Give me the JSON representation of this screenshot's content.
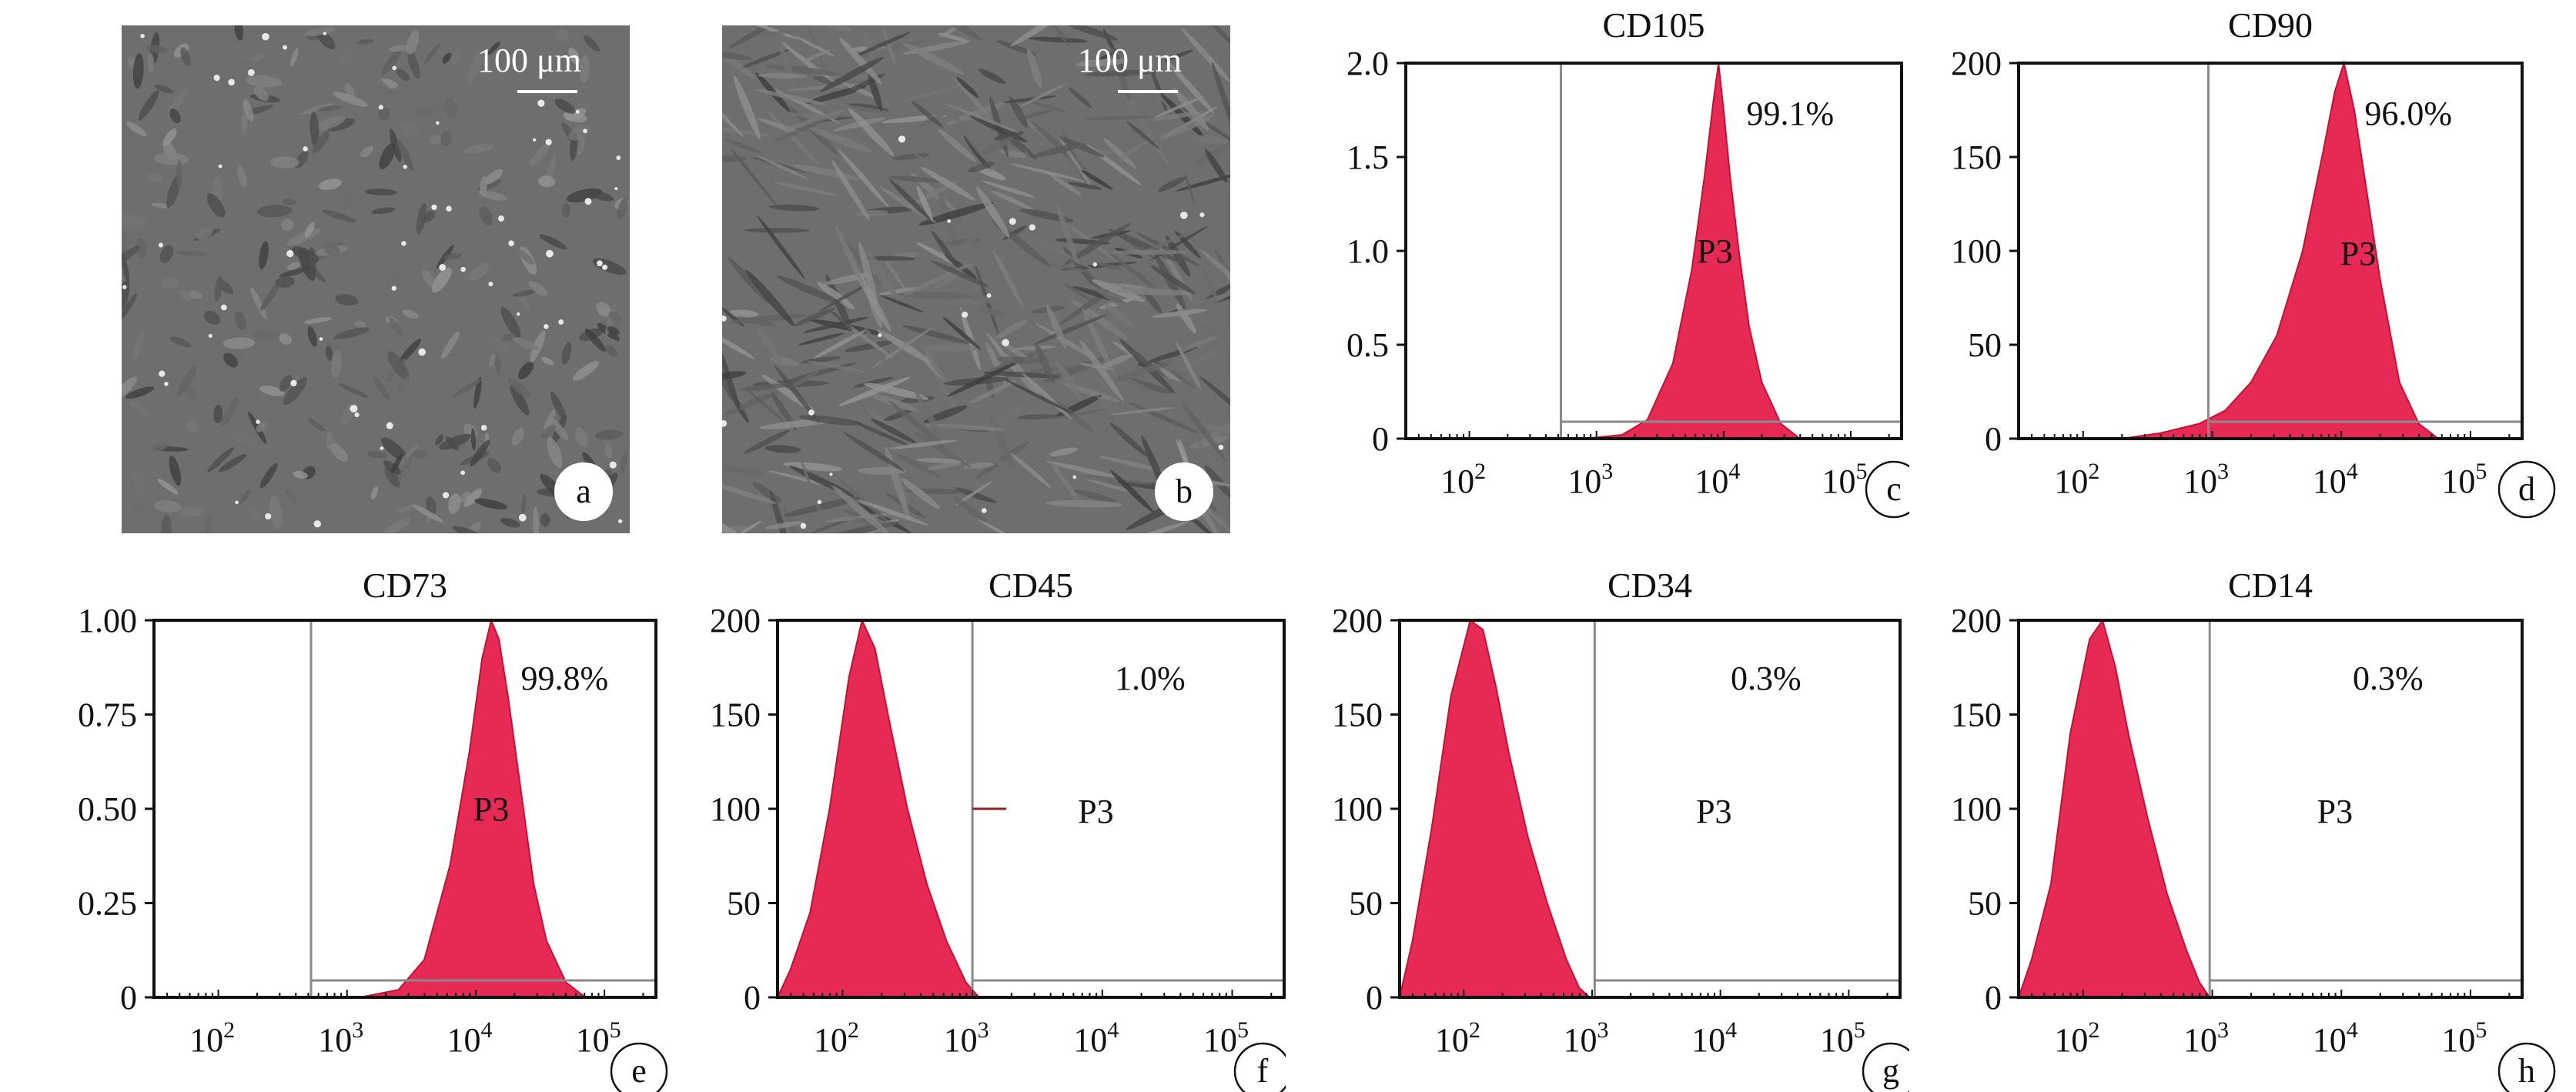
{
  "micrographs": [
    {
      "id": "a",
      "label": "a",
      "scale_text": "100 μm"
    },
    {
      "id": "b",
      "label": "b",
      "scale_text": "100 μm"
    }
  ],
  "chart_data": [
    {
      "id": "c",
      "type": "area",
      "title": "CD105",
      "panel_label": "c",
      "percent_text": "99.1%",
      "gate_label": "P3",
      "yticks": [
        "2.0",
        "1.5",
        "1.0",
        "0.5",
        "0"
      ],
      "ylim": [
        0,
        2.0
      ],
      "xticks": [
        {
          "base": "10",
          "exp": "2"
        },
        {
          "base": "10",
          "exp": "3"
        },
        {
          "base": "10",
          "exp": "4"
        },
        {
          "base": "10",
          "exp": "5"
        }
      ],
      "xscale": "log",
      "xlim_log10": [
        1.5,
        5.4
      ],
      "gate_log10": 2.72,
      "histogram": {
        "x_log10": [
          2.9,
          3.2,
          3.4,
          3.6,
          3.75,
          3.85,
          3.92,
          3.96,
          4.0,
          4.05,
          4.12,
          4.2,
          4.3,
          4.45,
          4.6
        ],
        "y": [
          0,
          0.02,
          0.1,
          0.4,
          0.9,
          1.4,
          1.8,
          2.0,
          1.75,
          1.4,
          1.0,
          0.6,
          0.3,
          0.08,
          0
        ]
      }
    },
    {
      "id": "d",
      "type": "area",
      "title": "CD90",
      "panel_label": "d",
      "percent_text": "96.0%",
      "gate_label": "P3",
      "yticks": [
        "200",
        "150",
        "100",
        "50",
        "0"
      ],
      "ylim": [
        0,
        200
      ],
      "xticks": [
        {
          "base": "10",
          "exp": "2"
        },
        {
          "base": "10",
          "exp": "3"
        },
        {
          "base": "10",
          "exp": "4"
        },
        {
          "base": "10",
          "exp": "5"
        }
      ],
      "xscale": "log",
      "xlim_log10": [
        1.5,
        5.4
      ],
      "gate_log10": 2.97,
      "histogram": {
        "x_log10": [
          2.3,
          2.6,
          2.9,
          3.1,
          3.3,
          3.5,
          3.7,
          3.85,
          3.95,
          4.02,
          4.1,
          4.2,
          4.3,
          4.45,
          4.6,
          4.75
        ],
        "y": [
          0,
          3,
          8,
          15,
          30,
          55,
          100,
          150,
          185,
          200,
          175,
          130,
          85,
          30,
          8,
          0
        ]
      }
    },
    {
      "id": "e",
      "type": "area",
      "title": "CD73",
      "panel_label": "e",
      "percent_text": "99.8%",
      "gate_label": "P3",
      "yticks": [
        "1.00",
        "0.75",
        "0.50",
        "0.25",
        "0"
      ],
      "ylim": [
        0,
        1.0
      ],
      "xticks": [
        {
          "base": "10",
          "exp": "2"
        },
        {
          "base": "10",
          "exp": "3"
        },
        {
          "base": "10",
          "exp": "4"
        },
        {
          "base": "10",
          "exp": "5"
        }
      ],
      "xscale": "log",
      "xlim_log10": [
        1.5,
        5.4
      ],
      "gate_log10": 2.72,
      "histogram": {
        "x_log10": [
          3.1,
          3.4,
          3.6,
          3.8,
          3.95,
          4.05,
          4.12,
          4.18,
          4.25,
          4.35,
          4.45,
          4.55,
          4.7,
          4.85
        ],
        "y": [
          0,
          0.02,
          0.1,
          0.35,
          0.65,
          0.9,
          1.0,
          0.95,
          0.8,
          0.55,
          0.3,
          0.15,
          0.04,
          0
        ]
      }
    },
    {
      "id": "f",
      "type": "area",
      "title": "CD45",
      "panel_label": "f",
      "percent_text": "1.0%",
      "gate_label": "P3",
      "yticks": [
        "200",
        "150",
        "100",
        "50",
        "0"
      ],
      "ylim": [
        0,
        200
      ],
      "xticks": [
        {
          "base": "10",
          "exp": "2"
        },
        {
          "base": "10",
          "exp": "3"
        },
        {
          "base": "10",
          "exp": "4"
        },
        {
          "base": "10",
          "exp": "5"
        }
      ],
      "xscale": "log",
      "xlim_log10": [
        1.5,
        5.4
      ],
      "gate_log10": 3.0,
      "histogram": {
        "x_log10": [
          1.5,
          1.6,
          1.75,
          1.9,
          2.05,
          2.15,
          2.25,
          2.35,
          2.5,
          2.65,
          2.8,
          2.95,
          3.05
        ],
        "y": [
          0,
          15,
          45,
          100,
          170,
          200,
          185,
          150,
          100,
          60,
          30,
          8,
          0
        ]
      }
    },
    {
      "id": "g",
      "type": "area",
      "title": "CD34",
      "panel_label": "g",
      "percent_text": "0.3%",
      "gate_label": "P3",
      "yticks": [
        "200",
        "150",
        "100",
        "50",
        "0"
      ],
      "ylim": [
        0,
        200
      ],
      "xticks": [
        {
          "base": "10",
          "exp": "2"
        },
        {
          "base": "10",
          "exp": "3"
        },
        {
          "base": "10",
          "exp": "4"
        },
        {
          "base": "10",
          "exp": "5"
        }
      ],
      "xscale": "log",
      "xlim_log10": [
        1.5,
        5.4
      ],
      "gate_log10": 3.02,
      "histogram": {
        "x_log10": [
          1.5,
          1.6,
          1.75,
          1.9,
          2.05,
          2.15,
          2.25,
          2.35,
          2.5,
          2.65,
          2.8,
          2.9,
          2.98
        ],
        "y": [
          0,
          30,
          90,
          160,
          200,
          195,
          165,
          130,
          85,
          50,
          20,
          5,
          0
        ]
      }
    },
    {
      "id": "h",
      "type": "area",
      "title": "CD14",
      "panel_label": "h",
      "percent_text": "0.3%",
      "gate_label": "P3",
      "yticks": [
        "200",
        "150",
        "100",
        "50",
        "0"
      ],
      "ylim": [
        0,
        200
      ],
      "xticks": [
        {
          "base": "10",
          "exp": "2"
        },
        {
          "base": "10",
          "exp": "3"
        },
        {
          "base": "10",
          "exp": "4"
        },
        {
          "base": "10",
          "exp": "5"
        }
      ],
      "xscale": "log",
      "xlim_log10": [
        1.5,
        5.4
      ],
      "gate_log10": 2.98,
      "histogram": {
        "x_log10": [
          1.5,
          1.6,
          1.75,
          1.9,
          2.05,
          2.15,
          2.25,
          2.35,
          2.5,
          2.65,
          2.8,
          2.9,
          2.98
        ],
        "y": [
          0,
          20,
          60,
          140,
          190,
          200,
          175,
          140,
          95,
          55,
          25,
          8,
          0
        ]
      }
    }
  ],
  "colors": {
    "histogram_fill": "#e62a55",
    "histogram_edge": "#c8102e",
    "gate_line": "#8a8a8a",
    "axis": "#111111"
  }
}
